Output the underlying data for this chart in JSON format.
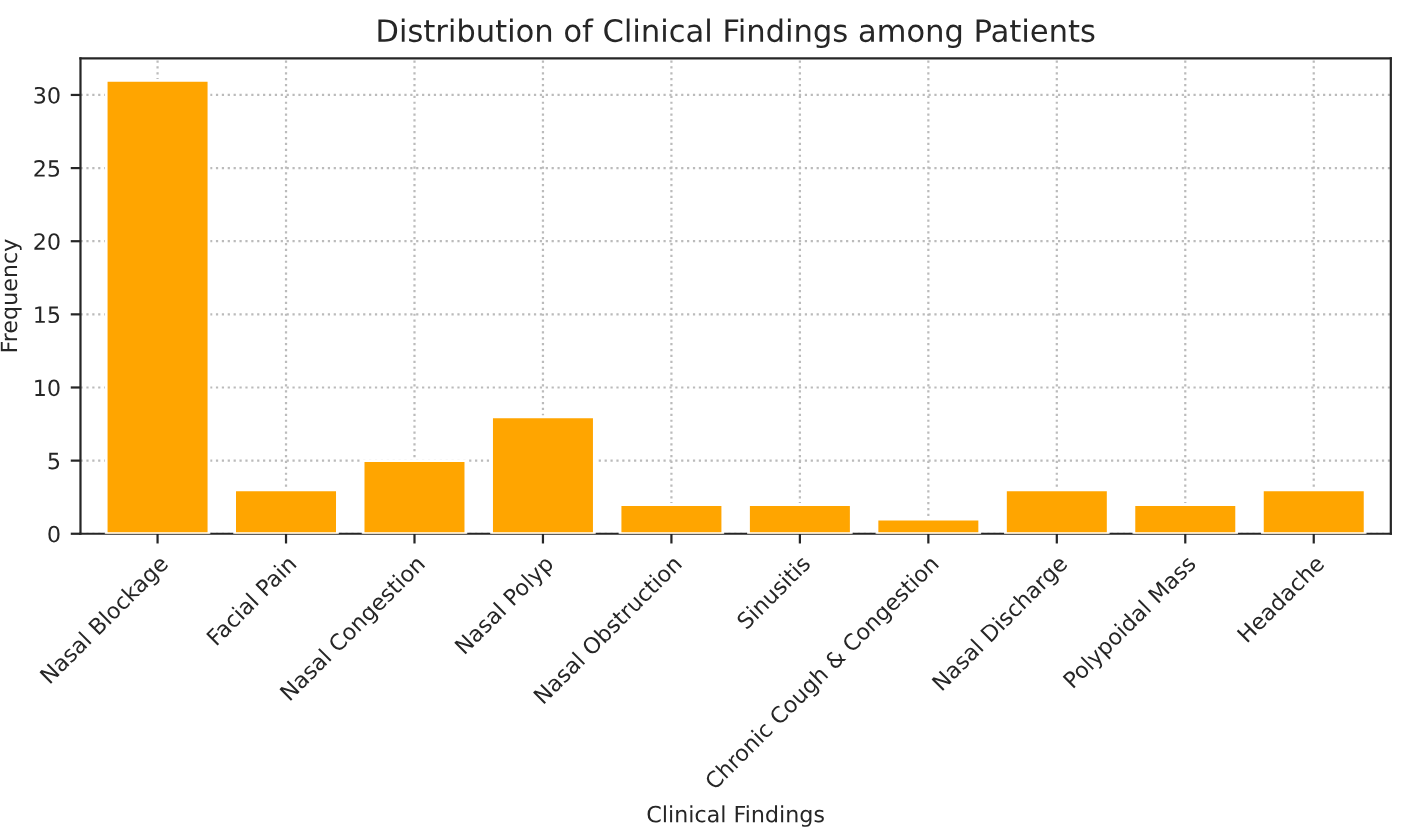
{
  "chart_data": {
    "type": "bar",
    "title": "Distribution of Clinical Findings among Patients",
    "xlabel": "Clinical Findings",
    "ylabel": "Frequency",
    "categories": [
      "Nasal Blockage",
      "Facial Pain",
      "Nasal Congestion",
      "Nasal Polyp",
      "Nasal Obstruction",
      "Sinusitis",
      "Chronic Cough & Congestion",
      "Nasal Discharge",
      "Polypoidal Mass",
      "Headache"
    ],
    "values": [
      31,
      3,
      5,
      8,
      2,
      2,
      1,
      3,
      2,
      3
    ],
    "color": "#ffa500",
    "ylim": [
      0,
      32.5
    ],
    "yticks": [
      0,
      5,
      10,
      15,
      20,
      25,
      30
    ],
    "grid": true
  }
}
